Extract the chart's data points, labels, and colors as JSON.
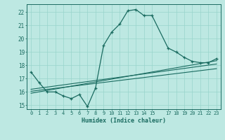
{
  "xlabel": "Humidex (Indice chaleur)",
  "bg_color": "#bde8e2",
  "line_color": "#1a6b60",
  "grid_color": "#98d4cc",
  "xlim": [
    -0.5,
    23.5
  ],
  "ylim": [
    14.7,
    22.6
  ],
  "yticks": [
    15,
    16,
    17,
    18,
    19,
    20,
    21,
    22
  ],
  "xticks": [
    0,
    1,
    2,
    3,
    4,
    5,
    6,
    7,
    8,
    9,
    10,
    11,
    12,
    13,
    14,
    15,
    17,
    18,
    19,
    20,
    21,
    22,
    23
  ],
  "xtick_labels": [
    "0",
    "1",
    "2",
    "3",
    "4",
    "5",
    "6",
    "7",
    "8",
    "9",
    "10",
    "11",
    "12",
    "13",
    "14",
    "15",
    "17",
    "18",
    "19",
    "20",
    "21",
    "22",
    "23"
  ],
  "main_line_x": [
    0,
    1,
    2,
    3,
    4,
    5,
    6,
    7,
    8,
    9,
    10,
    11,
    12,
    13,
    14,
    15,
    17,
    18,
    19,
    20,
    21,
    22,
    23
  ],
  "main_line_y": [
    17.5,
    16.7,
    16.0,
    16.0,
    15.7,
    15.5,
    15.8,
    14.9,
    16.3,
    19.5,
    20.5,
    21.1,
    22.1,
    22.2,
    21.75,
    21.75,
    19.3,
    19.0,
    18.6,
    18.3,
    18.2,
    18.2,
    18.5
  ],
  "line2_x": [
    0,
    23
  ],
  "line2_y": [
    16.05,
    17.75
  ],
  "line3_x": [
    0,
    23
  ],
  "line3_y": [
    16.2,
    18.1
  ],
  "line4_x": [
    0,
    23
  ],
  "line4_y": [
    15.9,
    18.35
  ]
}
